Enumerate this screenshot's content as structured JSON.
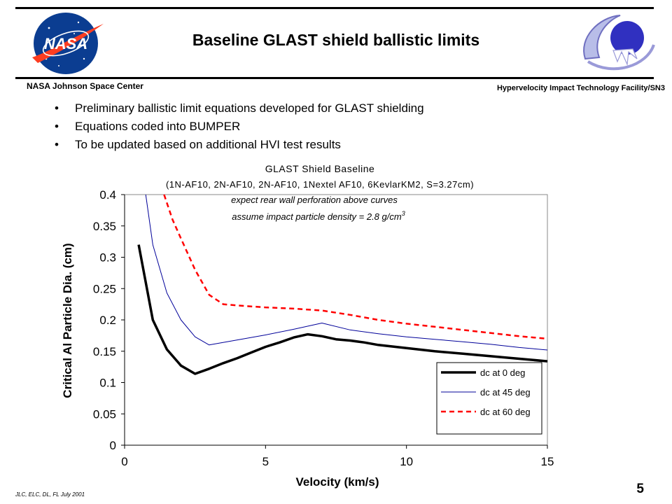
{
  "slide": {
    "title": "Baseline GLAST shield ballistic limits",
    "org": "NASA Johnson Space Center",
    "facility": "Hypervelocity Impact Technology Facility/SN3",
    "bullets": [
      "Preliminary ballistic limit equations developed for GLAST shielding",
      "Equations coded into BUMPER",
      "To be updated based on additional HVI test results"
    ],
    "bullet_glyph": "•",
    "footer": "JLC, ELC, DL, FL    July 2001",
    "page_number": "5",
    "logo_left": "NASA",
    "logo_right": "emblem"
  },
  "chart_data": {
    "type": "line",
    "title": "GLAST Shield Baseline",
    "subtitle": "(1N-AF10, 2N-AF10, 2N-AF10, 1Nextel AF10, 6KevlarKM2, S=3.27cm)",
    "annotation_1": "expect rear wall perforation above curves",
    "annotation_2": "assume impact particle density = 2.8 g/cm",
    "annotation_2_sup": "3",
    "xlabel": "Velocity (km/s)",
    "ylabel": "Critical Al Particle Dia. (cm)",
    "xlim": [
      0,
      15
    ],
    "ylim": [
      0,
      0.4
    ],
    "x_ticks": [
      "0",
      "5",
      "10",
      "15"
    ],
    "y_ticks": [
      "0",
      "0.05",
      "0.1",
      "0.15",
      "0.2",
      "0.25",
      "0.3",
      "0.35",
      "0.4"
    ],
    "grid": false,
    "legend_position": "bottom-right",
    "series": [
      {
        "name": "dc at 0 deg",
        "color": "#000000",
        "style": "solid-thick",
        "x": [
          0.5,
          1.0,
          1.5,
          2.0,
          2.5,
          3.0,
          3.5,
          4.0,
          4.5,
          5.0,
          5.5,
          6.0,
          6.5,
          7.0,
          7.5,
          8.0,
          8.5,
          9.0,
          10.0,
          11.0,
          12.0,
          13.0,
          14.0,
          15.0
        ],
        "y": [
          0.32,
          0.2,
          0.153,
          0.127,
          0.114,
          0.122,
          0.131,
          0.139,
          0.148,
          0.157,
          0.164,
          0.172,
          0.177,
          0.174,
          0.169,
          0.167,
          0.164,
          0.16,
          0.155,
          0.15,
          0.146,
          0.142,
          0.138,
          0.134
        ]
      },
      {
        "name": "dc at 45 deg",
        "color": "#000099",
        "style": "solid-thin",
        "x": [
          0.75,
          1.0,
          1.5,
          2.0,
          2.5,
          3.0,
          4.0,
          5.0,
          6.0,
          7.0,
          8.0,
          9.0,
          10.0,
          11.0,
          12.0,
          13.0,
          14.0,
          15.0
        ],
        "y": [
          0.4,
          0.32,
          0.243,
          0.2,
          0.173,
          0.16,
          0.168,
          0.176,
          0.185,
          0.195,
          0.184,
          0.178,
          0.173,
          0.169,
          0.165,
          0.161,
          0.156,
          0.152
        ]
      },
      {
        "name": "dc at 60 deg",
        "color": "#ff0000",
        "style": "dashed",
        "x": [
          1.4,
          1.7,
          2.0,
          2.5,
          3.0,
          3.5,
          4.0,
          5.0,
          6.0,
          7.0,
          8.0,
          9.0,
          10.0,
          11.0,
          12.0,
          13.0,
          14.0,
          15.0
        ],
        "y": [
          0.4,
          0.36,
          0.33,
          0.28,
          0.24,
          0.225,
          0.223,
          0.22,
          0.218,
          0.215,
          0.208,
          0.2,
          0.194,
          0.189,
          0.184,
          0.179,
          0.174,
          0.17
        ]
      }
    ]
  }
}
